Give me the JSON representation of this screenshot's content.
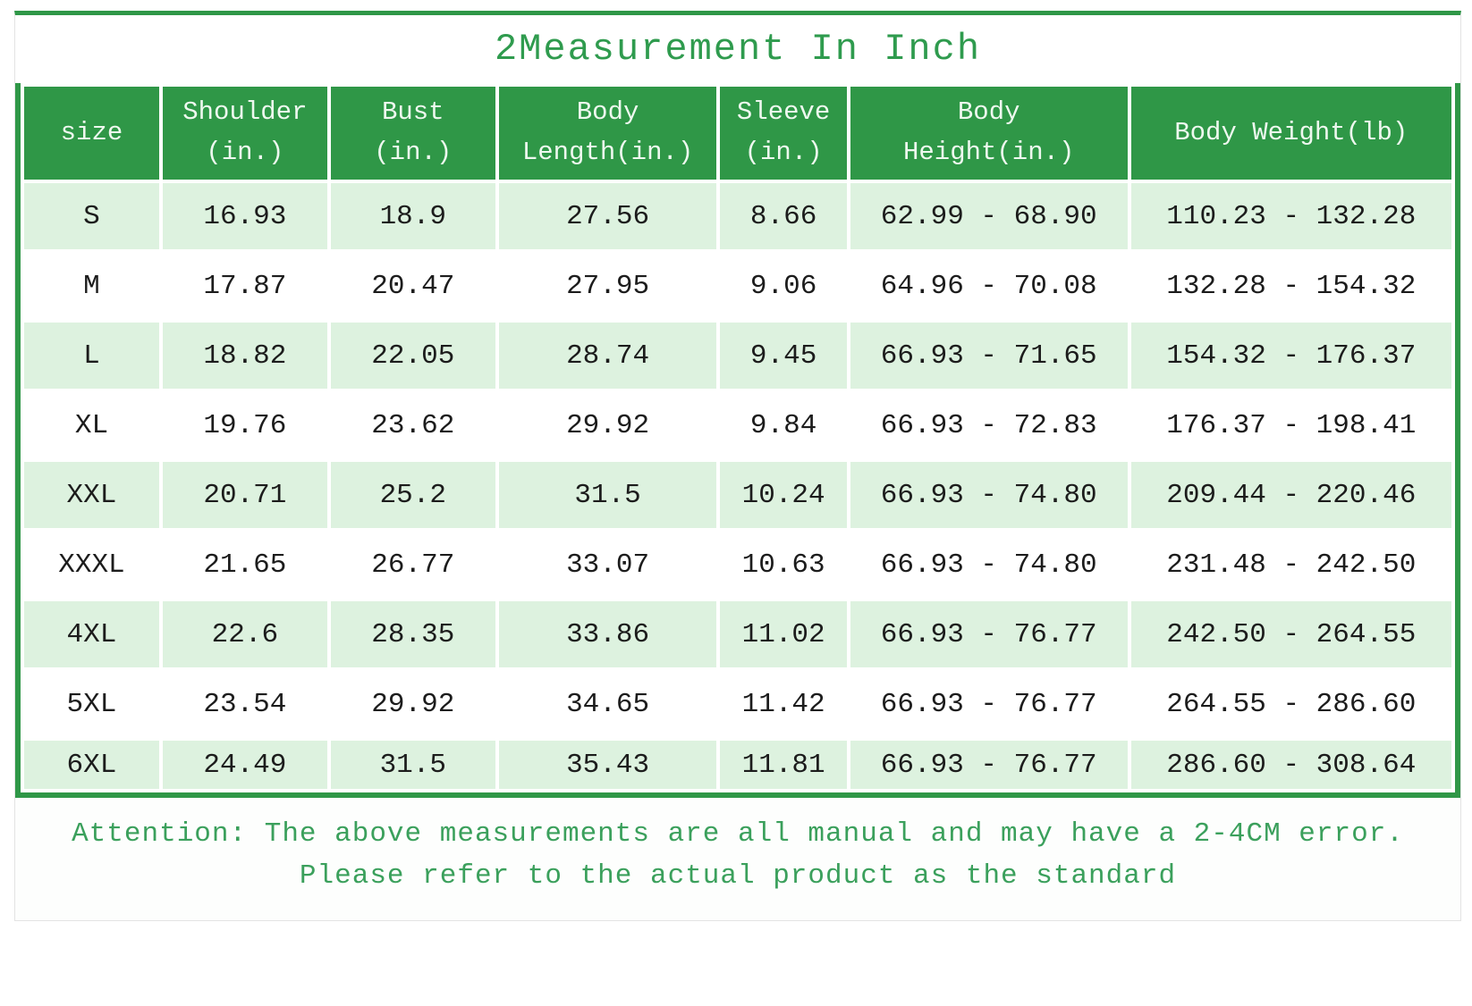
{
  "title": "2Measurement In Inch",
  "colors": {
    "header_green": "#2f9747",
    "row_light_green": "#ddf2df",
    "title_text_green": "#2f9b4e",
    "attention_text_green": "#3ba05c"
  },
  "table": {
    "columns": [
      "size",
      "Shoulder\n(in.)",
      "Bust\n(in.)",
      "Body\nLength(in.)",
      "Sleeve\n(in.)",
      "Body\nHeight(in.)",
      "Body Weight(lb)"
    ],
    "rows": [
      [
        "S",
        "16.93",
        "18.9",
        "27.56",
        "8.66",
        "62.99 - 68.90",
        "110.23 - 132.28"
      ],
      [
        "M",
        "17.87",
        "20.47",
        "27.95",
        "9.06",
        "64.96 - 70.08",
        "132.28 - 154.32"
      ],
      [
        "L",
        "18.82",
        "22.05",
        "28.74",
        "9.45",
        "66.93 - 71.65",
        "154.32 - 176.37"
      ],
      [
        "XL",
        "19.76",
        "23.62",
        "29.92",
        "9.84",
        "66.93 - 72.83",
        "176.37 - 198.41"
      ],
      [
        "XXL",
        "20.71",
        "25.2",
        "31.5",
        "10.24",
        "66.93 - 74.80",
        "209.44 - 220.46"
      ],
      [
        "XXXL",
        "21.65",
        "26.77",
        "33.07",
        "10.63",
        "66.93 - 74.80",
        "231.48 - 242.50"
      ],
      [
        "4XL",
        "22.6",
        "28.35",
        "33.86",
        "11.02",
        "66.93 - 76.77",
        "242.50 - 264.55"
      ],
      [
        "5XL",
        "23.54",
        "29.92",
        "34.65",
        "11.42",
        "66.93 - 76.77",
        "264.55 - 286.60"
      ],
      [
        "6XL",
        "24.49",
        "31.5",
        "35.43",
        "11.81",
        "66.93 - 76.77",
        "286.60 - 308.64"
      ]
    ]
  },
  "attention": {
    "line1": "Attention: The above measurements are all manual and may have a 2-4CM error.",
    "line2": "Please refer to the actual product as the standard"
  },
  "chart_data": {
    "type": "table",
    "title": "2Measurement In Inch",
    "columns": [
      "size",
      "Shoulder (in.)",
      "Bust (in.)",
      "Body Length(in.)",
      "Sleeve (in.)",
      "Body Height(in.)",
      "Body Weight(lb)"
    ],
    "rows": [
      [
        "S",
        16.93,
        18.9,
        27.56,
        8.66,
        "62.99 - 68.90",
        "110.23 - 132.28"
      ],
      [
        "M",
        17.87,
        20.47,
        27.95,
        9.06,
        "64.96 - 70.08",
        "132.28 - 154.32"
      ],
      [
        "L",
        18.82,
        22.05,
        28.74,
        9.45,
        "66.93 - 71.65",
        "154.32 - 176.37"
      ],
      [
        "XL",
        19.76,
        23.62,
        29.92,
        9.84,
        "66.93 - 72.83",
        "176.37 - 198.41"
      ],
      [
        "XXL",
        20.71,
        25.2,
        31.5,
        10.24,
        "66.93 - 74.80",
        "209.44 - 220.46"
      ],
      [
        "XXXL",
        21.65,
        26.77,
        33.07,
        10.63,
        "66.93 - 74.80",
        "231.48 - 242.50"
      ],
      [
        "4XL",
        22.6,
        28.35,
        33.86,
        11.02,
        "66.93 - 76.77",
        "242.50 - 264.55"
      ],
      [
        "5XL",
        23.54,
        29.92,
        34.65,
        11.42,
        "66.93 - 76.77",
        "264.55 - 286.60"
      ],
      [
        "6XL",
        24.49,
        31.5,
        35.43,
        11.81,
        "66.93 - 76.77",
        "286.60 - 308.64"
      ]
    ],
    "note": "Attention: The above measurements are all manual and may have a 2-4CM error. Please refer to the actual product as the standard"
  }
}
